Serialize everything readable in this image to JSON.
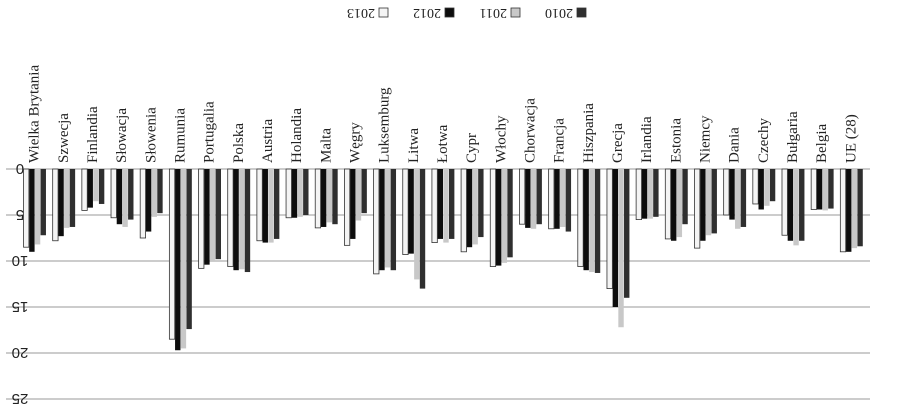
{
  "chart_data": {
    "type": "bar",
    "orientation": "vertical-down",
    "rendering_note": "mirrored",
    "legend": {
      "position": "top",
      "labels": [
        "2010",
        "2011",
        "2012",
        "2013"
      ]
    },
    "series_colors": [
      "#2f2f2f",
      "#c8c8c8",
      "#0d0d0d",
      "#f4f4f4"
    ],
    "categories": [
      "UE (28)",
      "Belgia",
      "Bułgaria",
      "Czechy",
      "Dania",
      "Niemcy",
      "Estonia",
      "Irlandia",
      "Grecja",
      "Hiszpania",
      "Francja",
      "Chorwacja",
      "Włochy",
      "Cypr",
      "Łotwa",
      "Litwa",
      "Luksemburg",
      "Węgry",
      "Malta",
      "Holandia",
      "Austria",
      "Polska",
      "Portugalia",
      "Rumunia",
      "Słowenia",
      "Słowacja",
      "Finlandia",
      "Szwecja",
      "Wielka Brytania"
    ],
    "series": [
      {
        "name": "2010",
        "values": [
          8.4,
          4.3,
          7.8,
          3.5,
          6.3,
          7.0,
          6.0,
          5.2,
          14.0,
          11.3,
          6.8,
          6.0,
          9.6,
          7.4,
          7.6,
          13.0,
          11.0,
          4.8,
          6.0,
          5.0,
          7.6,
          11.2,
          9.8,
          17.4,
          4.8,
          5.5,
          3.8,
          6.3,
          7.2
        ],
        "_": "-"
      },
      {
        "name": "2011",
        "values": [
          8.6,
          4.5,
          8.3,
          4.0,
          6.5,
          7.2,
          7.4,
          5.4,
          17.2,
          11.2,
          6.3,
          6.5,
          10.2,
          8.2,
          8.0,
          12.0,
          10.7,
          5.6,
          5.8,
          5.2,
          8.0,
          10.9,
          10.1,
          19.5,
          5.2,
          6.3,
          3.5,
          6.4,
          8.2
        ]
      },
      {
        "name": "2012",
        "values": [
          9.0,
          4.4,
          7.8,
          4.4,
          5.5,
          7.8,
          7.8,
          5.4,
          15.0,
          11.0,
          6.5,
          6.4,
          10.5,
          8.5,
          7.6,
          9.2,
          11.0,
          7.6,
          6.3,
          5.3,
          8.0,
          11.0,
          10.4,
          19.7,
          6.8,
          6.0,
          4.2,
          7.3,
          9.0
        ]
      },
      {
        "name": "2013",
        "values": [
          9.0,
          4.4,
          7.2,
          3.8,
          5.0,
          8.6,
          7.6,
          5.5,
          13.0,
          10.6,
          6.5,
          6.0,
          10.6,
          9.0,
          8.0,
          9.3,
          11.4,
          8.3,
          6.4,
          5.3,
          7.8,
          10.6,
          10.8,
          18.5,
          7.5,
          5.3,
          4.5,
          7.8,
          8.5
        ]
      }
    ],
    "ylim": [
      0,
      25
    ],
    "yticks": [
      "0",
      "5",
      "10",
      "15",
      "20",
      "25"
    ],
    "grid": "horizontal"
  }
}
